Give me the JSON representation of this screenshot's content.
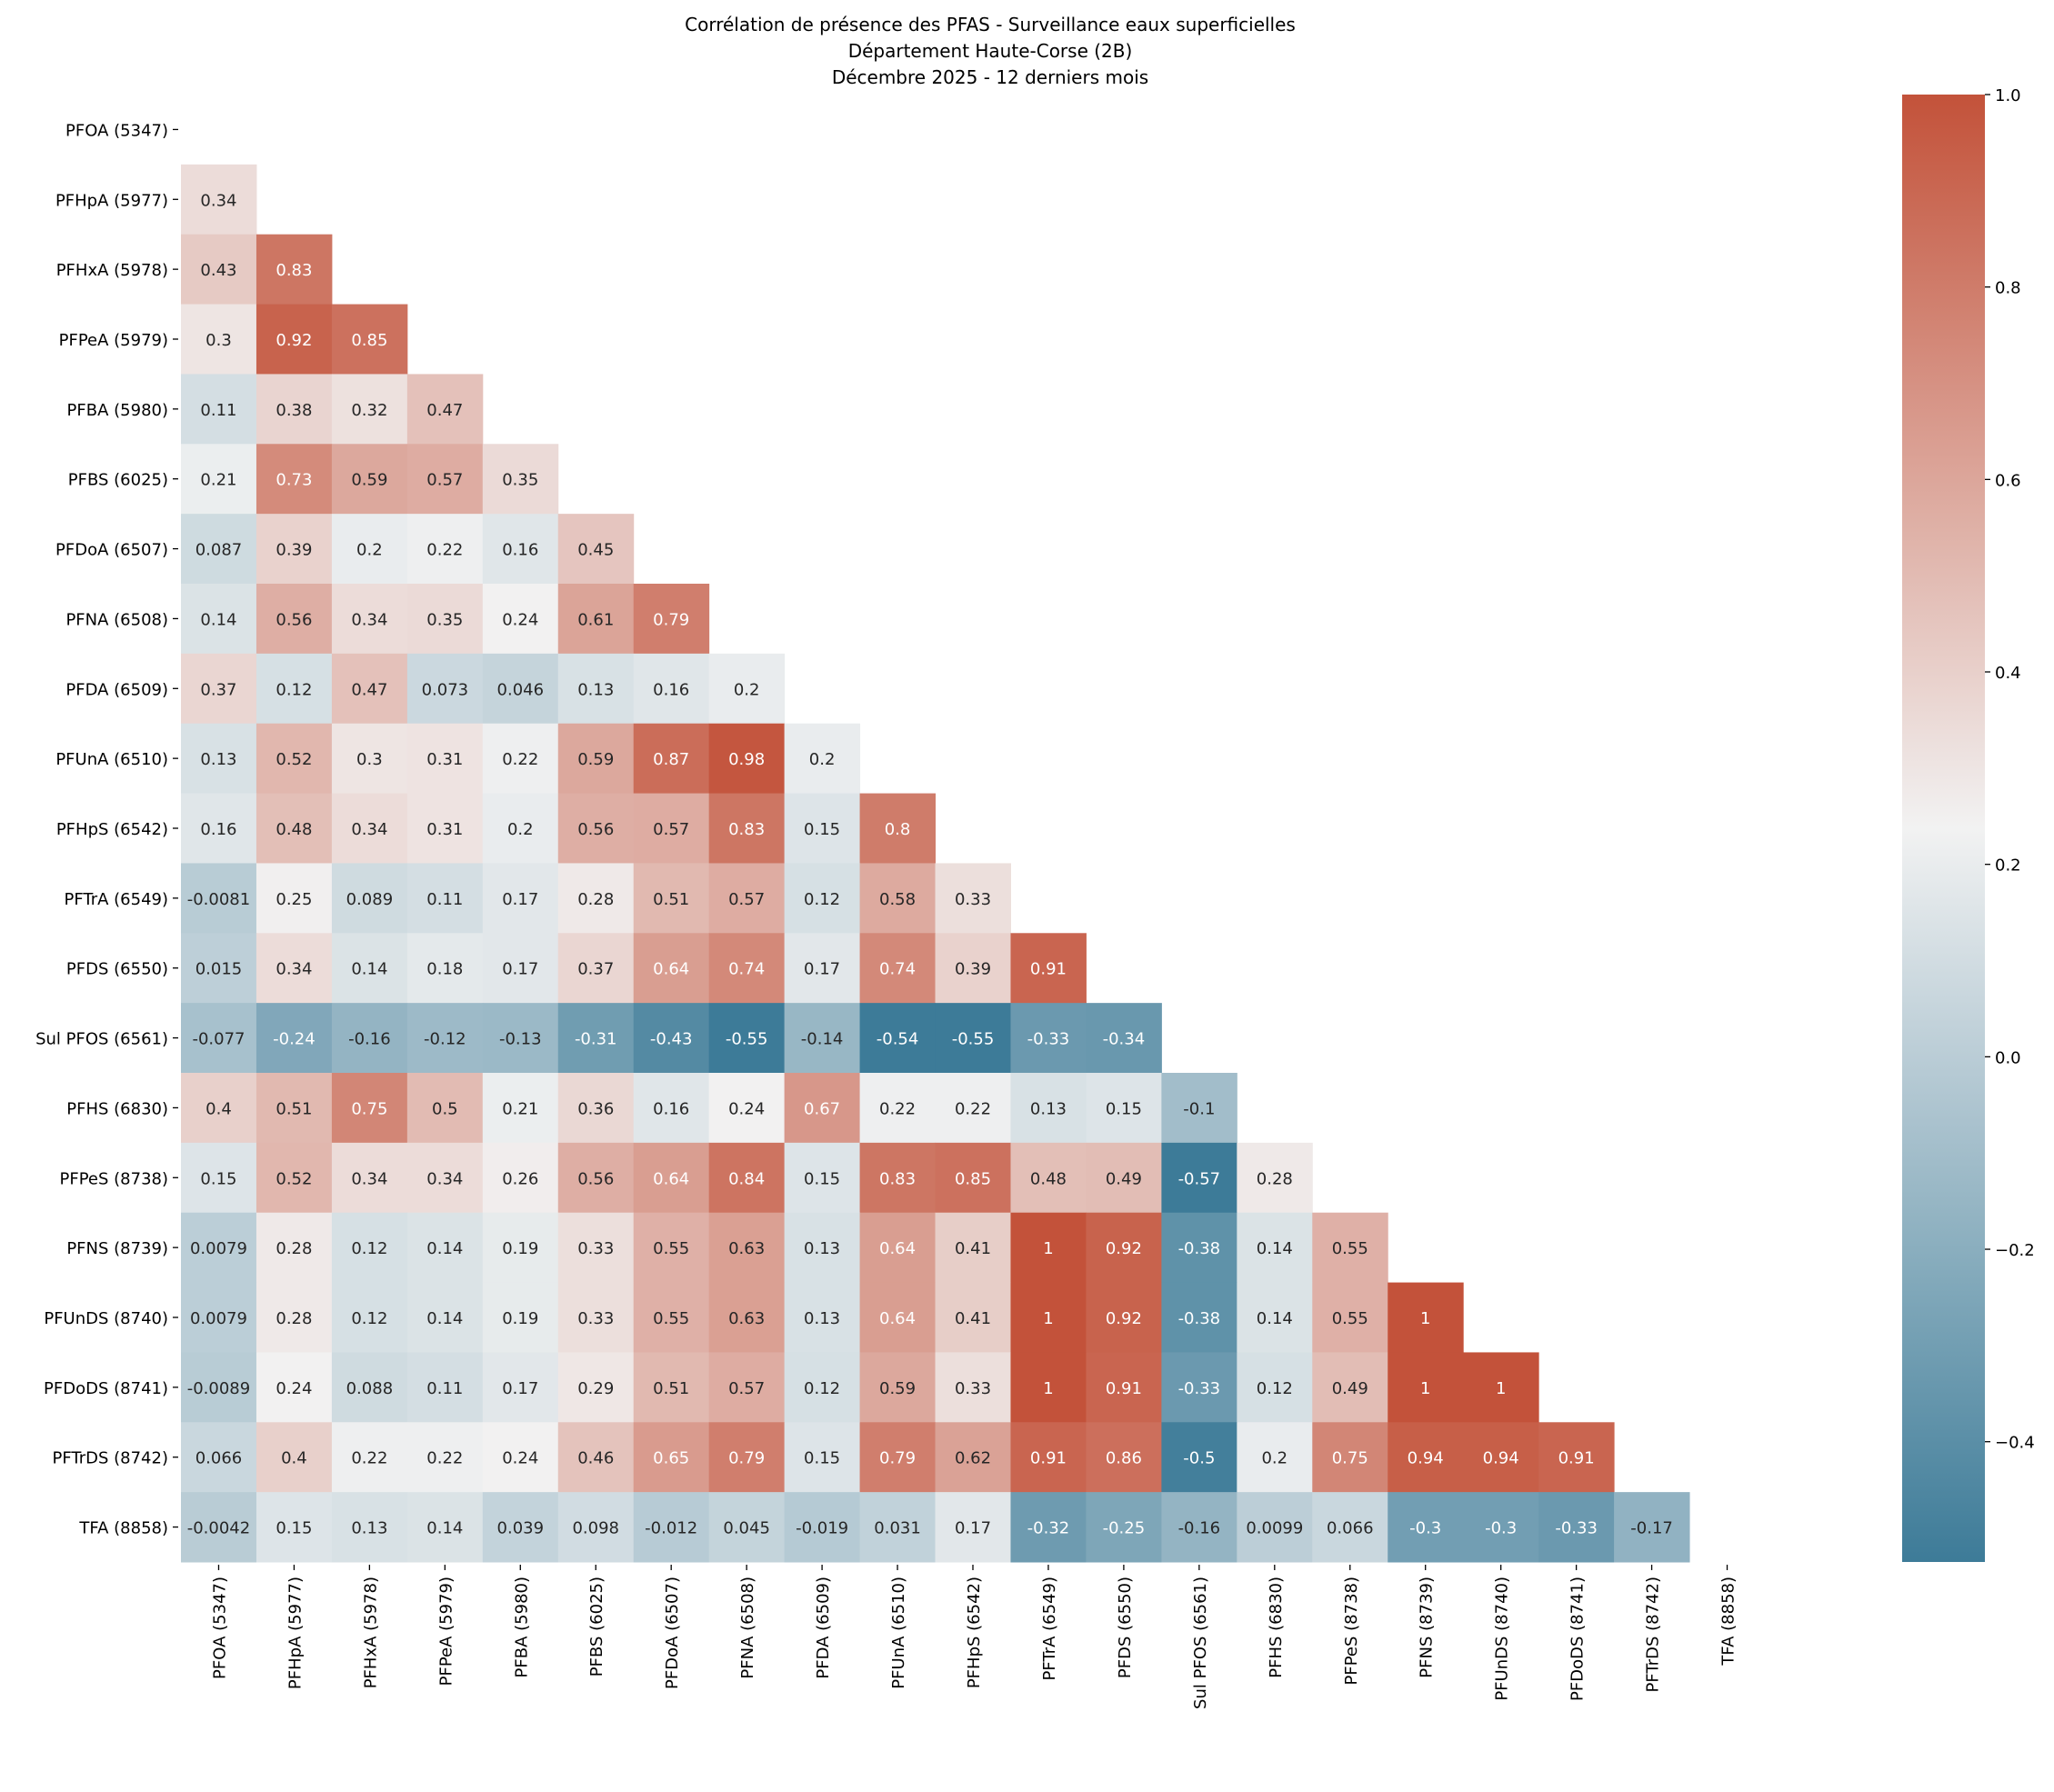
{
  "chart_data": {
    "type": "heatmap",
    "title": [
      "Corrélation de présence des PFAS - Surveillance eaux superficielles",
      "Département Haute-Corse (2B)",
      "Décembre 2025 - 12 derniers mois"
    ],
    "xlabel": "",
    "ylabel": "",
    "labels": [
      "PFOA (5347)",
      "PFHpA (5977)",
      "PFHxA (5978)",
      "PFPeA (5979)",
      "PFBA (5980)",
      "PFBS (6025)",
      "PFDoA (6507)",
      "PFNA (6508)",
      "PFDA (6509)",
      "PFUnA (6510)",
      "PFHpS (6542)",
      "PFTrA (6549)",
      "PFDS (6550)",
      "Sul PFOS (6561)",
      "PFHS (6830)",
      "PFPeS (8738)",
      "PFNS (8739)",
      "PFUnDS (8740)",
      "PFDoDS (8741)",
      "PFTrDS (8742)",
      "TFA (8858)"
    ],
    "mask": "upper triangle including diagonal",
    "lower_triangle": [
      [],
      [
        0.34
      ],
      [
        0.43,
        0.83
      ],
      [
        0.3,
        0.92,
        0.85
      ],
      [
        0.11,
        0.38,
        0.32,
        0.47
      ],
      [
        0.21,
        0.73,
        0.59,
        0.57,
        0.35
      ],
      [
        0.087,
        0.39,
        0.2,
        0.22,
        0.16,
        0.45
      ],
      [
        0.14,
        0.56,
        0.34,
        0.35,
        0.24,
        0.61,
        0.79
      ],
      [
        0.37,
        0.12,
        0.47,
        0.073,
        0.046,
        0.13,
        0.16,
        0.2
      ],
      [
        0.13,
        0.52,
        0.3,
        0.31,
        0.22,
        0.59,
        0.87,
        0.98,
        0.2
      ],
      [
        0.16,
        0.48,
        0.34,
        0.31,
        0.2,
        0.56,
        0.57,
        0.83,
        0.15,
        0.8
      ],
      [
        -0.0081,
        0.25,
        0.089,
        0.11,
        0.17,
        0.28,
        0.51,
        0.57,
        0.12,
        0.58,
        0.33
      ],
      [
        0.015,
        0.34,
        0.14,
        0.18,
        0.17,
        0.37,
        0.64,
        0.74,
        0.17,
        0.74,
        0.39,
        0.91
      ],
      [
        -0.077,
        -0.24,
        -0.16,
        -0.12,
        -0.13,
        -0.31,
        -0.43,
        -0.55,
        -0.14,
        -0.54,
        -0.55,
        -0.33,
        -0.34
      ],
      [
        0.4,
        0.51,
        0.75,
        0.5,
        0.21,
        0.36,
        0.16,
        0.24,
        0.67,
        0.22,
        0.22,
        0.13,
        0.15,
        -0.1
      ],
      [
        0.15,
        0.52,
        0.34,
        0.34,
        0.26,
        0.56,
        0.64,
        0.84,
        0.15,
        0.83,
        0.85,
        0.48,
        0.49,
        -0.57,
        0.28
      ],
      [
        0.0079,
        0.28,
        0.12,
        0.14,
        0.19,
        0.33,
        0.55,
        0.63,
        0.13,
        0.64,
        0.41,
        1,
        0.92,
        -0.38,
        0.14,
        0.55
      ],
      [
        0.0079,
        0.28,
        0.12,
        0.14,
        0.19,
        0.33,
        0.55,
        0.63,
        0.13,
        0.64,
        0.41,
        1,
        0.92,
        -0.38,
        0.14,
        0.55,
        1
      ],
      [
        -0.0089,
        0.24,
        0.088,
        0.11,
        0.17,
        0.29,
        0.51,
        0.57,
        0.12,
        0.59,
        0.33,
        1,
        0.91,
        -0.33,
        0.12,
        0.49,
        1,
        1
      ],
      [
        0.066,
        0.4,
        0.22,
        0.22,
        0.24,
        0.46,
        0.65,
        0.79,
        0.15,
        0.79,
        0.62,
        0.91,
        0.86,
        -0.5,
        0.2,
        0.75,
        0.94,
        0.94,
        0.91
      ],
      [
        -0.0042,
        0.15,
        0.13,
        0.14,
        0.039,
        0.098,
        -0.012,
        0.045,
        -0.019,
        0.031,
        0.17,
        -0.32,
        -0.25,
        -0.16,
        0.0099,
        0.066,
        -0.3,
        -0.3,
        -0.33,
        -0.17
      ]
    ],
    "colorbar": {
      "range": [
        -0.525,
        1.0
      ],
      "ticks": [
        -0.4,
        -0.2,
        0.0,
        0.2,
        0.4,
        0.6,
        0.8,
        1.0
      ],
      "tick_labels": [
        "−0.4",
        "−0.2",
        "0.0",
        "0.2",
        "0.4",
        "0.6",
        "0.8",
        "1.0"
      ],
      "colors": {
        "low": "#3d7b98",
        "mid": "#f2f2f2",
        "high": "#c3523a"
      }
    },
    "grid": false,
    "legend": "colorbar right"
  }
}
